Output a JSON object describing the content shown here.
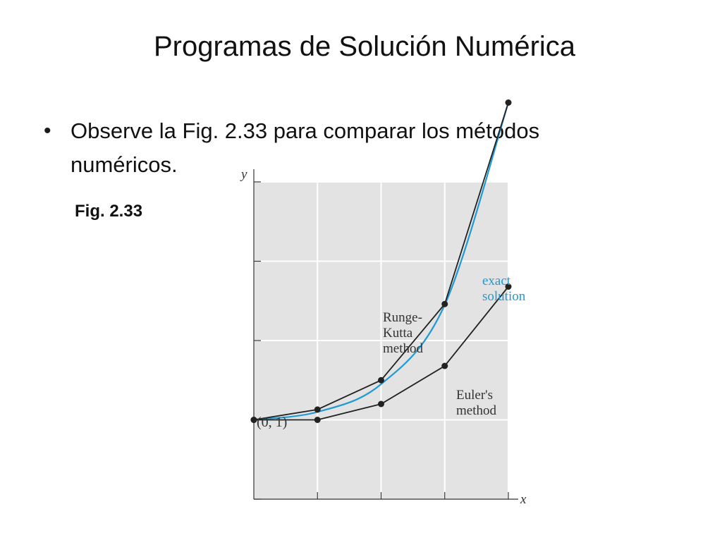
{
  "slide": {
    "title": "Programas de Solución Numérica",
    "bullet": "Observe la Fig. 2.33 para comparar los métodos numéricos.",
    "figure_label": "Fig. 2.33"
  },
  "colors": {
    "plot_background": "#e3e3e3",
    "grid": "#ffffff",
    "method_lines": "#222222",
    "exact_solution": "#1e9ad6"
  },
  "chart_data": {
    "type": "line",
    "title": "",
    "xlabel": "x",
    "ylabel": "y",
    "xlim": [
      0,
      4
    ],
    "ylim": [
      -1,
      3
    ],
    "grid": true,
    "x": [
      0,
      1,
      2,
      3,
      4
    ],
    "series": [
      {
        "label": [
          "Runge-",
          "Kutta",
          "method"
        ],
        "color": "#222222",
        "markers": true,
        "values": [
          0,
          0.13,
          0.5,
          1.46,
          4.0
        ]
      },
      {
        "label": [
          "Euler's",
          "method"
        ],
        "color": "#222222",
        "markers": true,
        "values": [
          0,
          0,
          0.2,
          0.68,
          1.68
        ]
      },
      {
        "label": [
          "exact",
          "solution"
        ],
        "color": "#1e9ad6",
        "markers": false,
        "values": [
          0,
          0.1,
          0.45,
          1.45,
          4.0
        ]
      }
    ],
    "annotations": [
      {
        "text": "(0, 1)"
      }
    ]
  }
}
